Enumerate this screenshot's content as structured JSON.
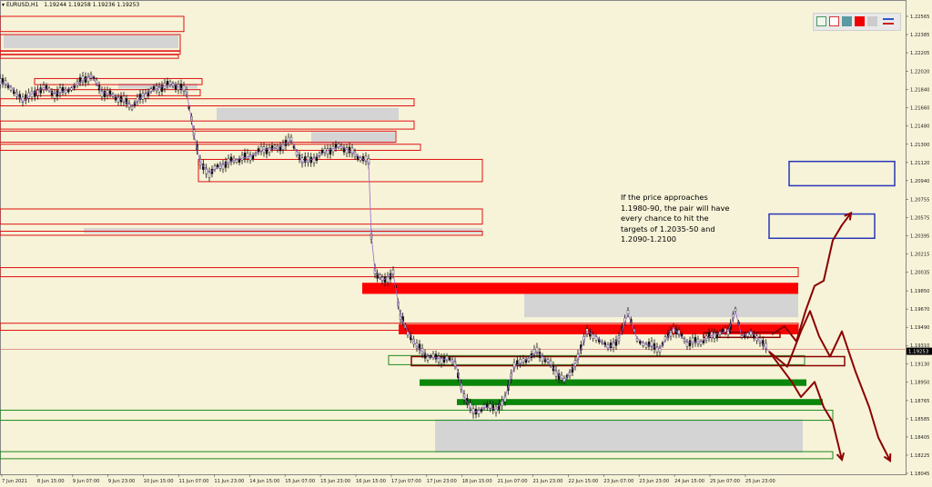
{
  "header": {
    "symbol": "EURUSD,H1",
    "ohlc": "1.19244 1.19258 1.19236 1.19253"
  },
  "annotation": {
    "text": "If the price approaches 1.1980-90, the pair will have every chance to hit the targets of 1.2035-50 and 1.2090-1.2100"
  },
  "toolbar": {
    "buttons": [
      "outline-green-rect-icon",
      "outline-red-rect-icon",
      "teal-rect-icon",
      "red-rect-icon",
      "grey-rect-icon",
      "blue-red-lines-icon"
    ]
  },
  "chart_data": {
    "type": "candlestick",
    "symbol": "EURUSD",
    "timeframe": "H1",
    "current_price": 1.19253,
    "y_ticks": [
      "1.22565",
      "1.22385",
      "1.22205",
      "1.22020",
      "1.21840",
      "1.21660",
      "1.21480",
      "1.21300",
      "1.21120",
      "1.20940",
      "1.20755",
      "1.20575",
      "1.20395",
      "1.20215",
      "1.20035",
      "1.19850",
      "1.19670",
      "1.19490",
      "1.19310",
      "1.19130",
      "1.18950",
      "1.18765",
      "1.18585",
      "1.18405",
      "1.18225",
      "1.18045"
    ],
    "x_ticks": [
      "7 Jun 2021",
      "8 Jun 15:00",
      "9 Jun 07:00",
      "9 Jun 23:00",
      "10 Jun 15:00",
      "11 Jun 07:00",
      "11 Jun 23:00",
      "14 Jun 15:00",
      "15 Jun 07:00",
      "15 Jun 23:00",
      "16 Jun 15:00",
      "17 Jun 07:00",
      "17 Jun 23:00",
      "18 Jun 15:00",
      "21 Jun 07:00",
      "21 Jun 23:00",
      "22 Jun 15:00",
      "23 Jun 07:00",
      "23 Jun 23:00",
      "24 Jun 15:00",
      "25 Jun 07:00",
      "25 Jun 23:00"
    ],
    "ylim": [
      1.18,
      1.2265
    ],
    "price_path": [
      [
        0,
        1.2192
      ],
      [
        12,
        1.2187
      ],
      [
        25,
        1.2172
      ],
      [
        35,
        1.218
      ],
      [
        48,
        1.2186
      ],
      [
        60,
        1.218
      ],
      [
        72,
        1.2183
      ],
      [
        85,
        1.219
      ],
      [
        100,
        1.2198
      ],
      [
        112,
        1.2182
      ],
      [
        130,
        1.2176
      ],
      [
        145,
        1.2168
      ],
      [
        160,
        1.218
      ],
      [
        175,
        1.2186
      ],
      [
        190,
        1.219
      ],
      [
        205,
        1.2182
      ],
      [
        213,
        1.214
      ],
      [
        220,
        1.2112
      ],
      [
        230,
        1.2102
      ],
      [
        245,
        1.211
      ],
      [
        260,
        1.2115
      ],
      [
        275,
        1.2118
      ],
      [
        290,
        1.2125
      ],
      [
        305,
        1.2126
      ],
      [
        320,
        1.2134
      ],
      [
        332,
        1.2112
      ],
      [
        345,
        1.2116
      ],
      [
        360,
        1.2124
      ],
      [
        375,
        1.2128
      ],
      [
        390,
        1.212
      ],
      [
        405,
        1.2112
      ],
      [
        408,
        1.204
      ],
      [
        412,
        1.2005
      ],
      [
        420,
        1.1995
      ],
      [
        432,
        1.2002
      ],
      [
        440,
        1.196
      ],
      [
        448,
        1.1945
      ],
      [
        458,
        1.193
      ],
      [
        470,
        1.192
      ],
      [
        485,
        1.1918
      ],
      [
        500,
        1.1915
      ],
      [
        510,
        1.188
      ],
      [
        520,
        1.1864
      ],
      [
        532,
        1.187
      ],
      [
        545,
        1.1868
      ],
      [
        555,
        1.188
      ],
      [
        565,
        1.191
      ],
      [
        575,
        1.1915
      ],
      [
        590,
        1.1925
      ],
      [
        605,
        1.1912
      ],
      [
        620,
        1.1895
      ],
      [
        635,
        1.1918
      ],
      [
        645,
        1.1945
      ],
      [
        655,
        1.194
      ],
      [
        668,
        1.1928
      ],
      [
        680,
        1.1938
      ],
      [
        690,
        1.1962
      ],
      [
        700,
        1.1938
      ],
      [
        710,
        1.1932
      ],
      [
        725,
        1.1928
      ],
      [
        740,
        1.1948
      ],
      [
        755,
        1.1934
      ],
      [
        770,
        1.1935
      ],
      [
        785,
        1.1942
      ],
      [
        800,
        1.1945
      ],
      [
        808,
        1.1965
      ],
      [
        815,
        1.194
      ],
      [
        825,
        1.1945
      ],
      [
        835,
        1.1935
      ],
      [
        845,
        1.1925
      ]
    ],
    "forecasts": [
      {
        "color": "#8b0000",
        "points": [
          [
            845,
            1.1925
          ],
          [
            870,
            1.1895
          ],
          [
            880,
            1.188
          ],
          [
            895,
            1.1895
          ],
          [
            905,
            1.187
          ],
          [
            915,
            1.1855
          ],
          [
            925,
            1.1818
          ]
        ]
      },
      {
        "color": "#8b0000",
        "points": [
          [
            845,
            1.1925
          ],
          [
            865,
            1.191
          ],
          [
            880,
            1.1945
          ],
          [
            890,
            1.1965
          ],
          [
            900,
            1.194
          ],
          [
            912,
            1.192
          ],
          [
            925,
            1.1945
          ],
          [
            940,
            1.1905
          ],
          [
            955,
            1.187
          ],
          [
            965,
            1.184
          ],
          [
            978,
            1.1817
          ]
        ]
      },
      {
        "color": "#8b0000",
        "points": [
          [
            848,
            1.1942
          ],
          [
            862,
            1.195
          ],
          [
            875,
            1.1935
          ],
          [
            885,
            1.1965
          ],
          [
            895,
            1.199
          ],
          [
            905,
            1.1995
          ],
          [
            915,
            1.2035
          ],
          [
            925,
            1.205
          ],
          [
            935,
            1.2062
          ]
        ]
      }
    ],
    "zones": [
      {
        "kind": "red-outline",
        "x": [
          0,
          202
        ],
        "y": [
          1.22415,
          1.22565
        ]
      },
      {
        "kind": "red-outline",
        "x": [
          0,
          198
        ],
        "y": [
          1.2222,
          1.22385
        ]
      },
      {
        "kind": "grey",
        "x": [
          4,
          196
        ],
        "y": [
          1.2225,
          1.2238
        ]
      },
      {
        "kind": "red-outline",
        "x": [
          0,
          198
        ],
        "y": [
          1.2219,
          1.22225
        ]
      },
      {
        "kind": "red-outline",
        "x": [
          0,
          196
        ],
        "y": [
          1.2215,
          1.22185
        ]
      },
      {
        "kind": "red-outline",
        "x": [
          38,
          222
        ],
        "y": [
          1.2189,
          1.2195
        ]
      },
      {
        "kind": "grey",
        "x": [
          130,
          217
        ],
        "y": [
          1.2185,
          1.219
        ]
      },
      {
        "kind": "red-outline",
        "x": [
          40,
          220
        ],
        "y": [
          1.2178,
          1.2184
        ]
      },
      {
        "kind": "red-outline",
        "x": [
          0,
          455
        ],
        "y": [
          1.2168,
          1.2175
        ]
      },
      {
        "kind": "grey",
        "x": [
          238,
          438
        ],
        "y": [
          1.2154,
          1.2166
        ]
      },
      {
        "kind": "red-outline",
        "x": [
          0,
          455
        ],
        "y": [
          1.2145,
          1.2153
        ]
      },
      {
        "kind": "grey",
        "x": [
          342,
          434
        ],
        "y": [
          1.2131,
          1.2142
        ]
      },
      {
        "kind": "red-outline",
        "x": [
          0,
          435
        ],
        "y": [
          1.2132,
          1.2143
        ]
      },
      {
        "kind": "red-outline",
        "x": [
          0,
          462
        ],
        "y": [
          1.2124,
          1.213
        ]
      },
      {
        "kind": "red-outline",
        "x": [
          218,
          530
        ],
        "y": [
          1.2093,
          1.2115
        ]
      },
      {
        "kind": "red-outline",
        "x": [
          0,
          530
        ],
        "y": [
          1.2051,
          1.2066
        ]
      },
      {
        "kind": "grey",
        "x": [
          92,
          530
        ],
        "y": [
          1.2042,
          1.2047
        ]
      },
      {
        "kind": "red-outline",
        "x": [
          0,
          530
        ],
        "y": [
          1.204,
          1.2044
        ]
      },
      {
        "kind": "red-outline",
        "x": [
          0,
          877
        ],
        "y": [
          1.1999,
          1.2008
        ]
      },
      {
        "kind": "red-fill",
        "x": [
          398,
          877
        ],
        "y": [
          1.1982,
          1.1993
        ]
      },
      {
        "kind": "grey",
        "x": [
          576,
          877
        ],
        "y": [
          1.1959,
          1.1982
        ]
      },
      {
        "kind": "red-outline",
        "x": [
          0,
          877
        ],
        "y": [
          1.1946,
          1.1953
        ]
      },
      {
        "kind": "red-fill",
        "x": [
          438,
          877
        ],
        "y": [
          1.1942,
          1.1952
        ]
      },
      {
        "kind": "darkred-outline",
        "x": [
          773,
          857
        ],
        "y": [
          1.1939,
          1.1944
        ]
      },
      {
        "kind": "red-hline",
        "x": [
          0,
          995
        ],
        "y": [
          1.1927,
          1.1927
        ]
      },
      {
        "kind": "green-outline",
        "x": [
          427,
          884
        ],
        "y": [
          1.1912,
          1.1921
        ]
      },
      {
        "kind": "darkred-outline",
        "x": [
          452,
          928
        ],
        "y": [
          1.1911,
          1.192
        ]
      },
      {
        "kind": "green-fill",
        "x": [
          461,
          886
        ],
        "y": [
          1.1891,
          1.18975
        ]
      },
      {
        "kind": "green-fill",
        "x": [
          502,
          904
        ],
        "y": [
          1.1872,
          1.1878
        ]
      },
      {
        "kind": "green-outline",
        "x": [
          0,
          915
        ],
        "y": [
          1.1857,
          1.1867
        ]
      },
      {
        "kind": "grey",
        "x": [
          478,
          882
        ],
        "y": [
          1.1825,
          1.1858
        ]
      },
      {
        "kind": "green-outline",
        "x": [
          0,
          915
        ],
        "y": [
          1.1819,
          1.1826
        ]
      },
      {
        "kind": "blue-outline",
        "x": [
          867,
          983
        ],
        "y": [
          1.2089,
          1.2113
        ]
      },
      {
        "kind": "blue-outline",
        "x": [
          845,
          961
        ],
        "y": [
          1.2037,
          1.2061
        ]
      }
    ]
  }
}
